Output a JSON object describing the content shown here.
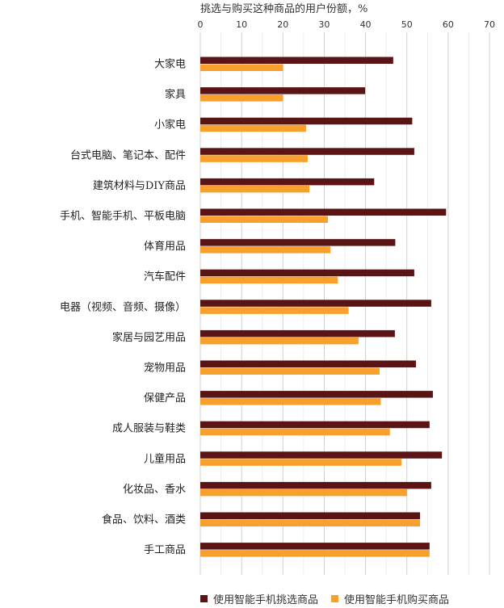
{
  "chart_data": {
    "type": "bar",
    "orientation": "horizontal",
    "title": "挑选与购买这种商品的用户份额，%",
    "xlabel": "",
    "ylabel": "",
    "xlim": [
      0,
      70
    ],
    "xticks": [
      "0",
      "10",
      "20",
      "30",
      "40",
      "50",
      "60",
      "70"
    ],
    "grid": true,
    "legend_position": "bottom",
    "categories": [
      "大家电",
      "家具",
      "小家电",
      "台式电脑、笔记本、配件",
      "建筑材料与DIY商品",
      "手机、智能手机、平板电脑",
      "体育用品",
      "汽车配件",
      "电器（视频、音频、摄像）",
      "家居与园艺用品",
      "宠物用品",
      "保健产品",
      "成人服装与鞋类",
      "儿童用品",
      "化妆品、香水",
      "食品、饮料、酒类",
      "手工商品"
    ],
    "series": [
      {
        "name": "使用智能手机挑选商品",
        "color": "#5a1414",
        "values": [
          46.7,
          39.9,
          51.3,
          51.8,
          42.1,
          59.5,
          47.2,
          51.8,
          55.9,
          47.1,
          52.2,
          56.3,
          55.5,
          58.5,
          55.9,
          53.2,
          55.5
        ]
      },
      {
        "name": "使用智能手机购买商品",
        "color": "#f8a02e",
        "values": [
          20.0,
          20.0,
          25.6,
          26.0,
          26.4,
          30.9,
          31.5,
          33.3,
          35.9,
          38.3,
          43.4,
          43.7,
          45.9,
          48.7,
          50.0,
          53.2,
          55.5
        ]
      }
    ]
  }
}
